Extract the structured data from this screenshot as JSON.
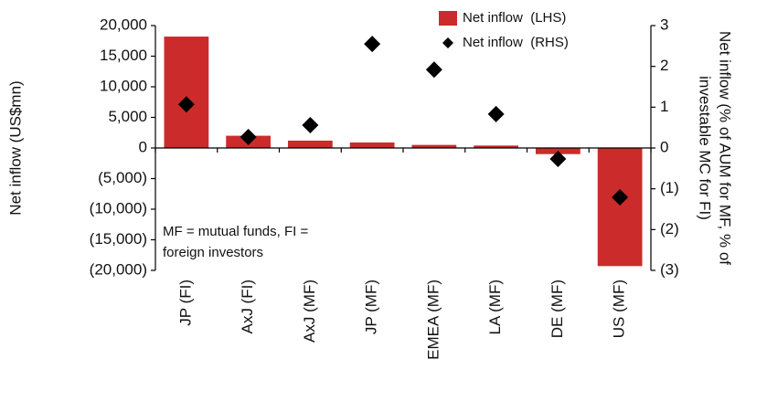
{
  "chart_data": {
    "type": "bar",
    "categories": [
      "JP (FI)",
      "AxJ (FI)",
      "AxJ (MF)",
      "JP (MF)",
      "EMEA (MF)",
      "LA (MF)",
      "DE (MF)",
      "US (MF)"
    ],
    "series": [
      {
        "name": "Net inflow  (LHS)",
        "type": "bar",
        "color": "#cc2b2b",
        "values": [
          18200,
          2000,
          1200,
          900,
          500,
          400,
          -1000,
          -19300
        ]
      },
      {
        "name": "Net inflow  (RHS)",
        "type": "scatter",
        "marker": "diamond",
        "axis": "y2",
        "color": "#000000",
        "values": [
          1.07,
          0.27,
          0.56,
          2.55,
          1.92,
          0.83,
          -0.27,
          -1.21
        ]
      }
    ],
    "ylabel": "Net inflow (US$mn)",
    "y2label": [
      "Net inflow (% of AUM for MF, % of",
      "investable MC for FI)"
    ],
    "annotation": [
      "MF = mutual funds, FI =",
      "foreign investors"
    ],
    "ylim": [
      -20000,
      20000
    ],
    "yticks": [
      {
        "value": 20000,
        "label": "20,000"
      },
      {
        "value": 15000,
        "label": "15,000"
      },
      {
        "value": 10000,
        "label": "10,000"
      },
      {
        "value": 5000,
        "label": "5,000"
      },
      0,
      {
        "value": -5000,
        "label": "(5,000)"
      },
      {
        "value": -10000,
        "label": "(10,000)"
      },
      {
        "value": -15000,
        "label": "(15,000)"
      },
      {
        "value": -20000,
        "label": "(20,000)"
      }
    ],
    "y2lim": [
      -3,
      3
    ],
    "y2ticks": [
      3,
      2,
      1,
      0,
      {
        "value": -1,
        "label": "(1)"
      },
      {
        "value": -2,
        "label": "(2)"
      },
      {
        "value": -3,
        "label": "(3)"
      }
    ],
    "legend": "upper right",
    "grid": false
  }
}
